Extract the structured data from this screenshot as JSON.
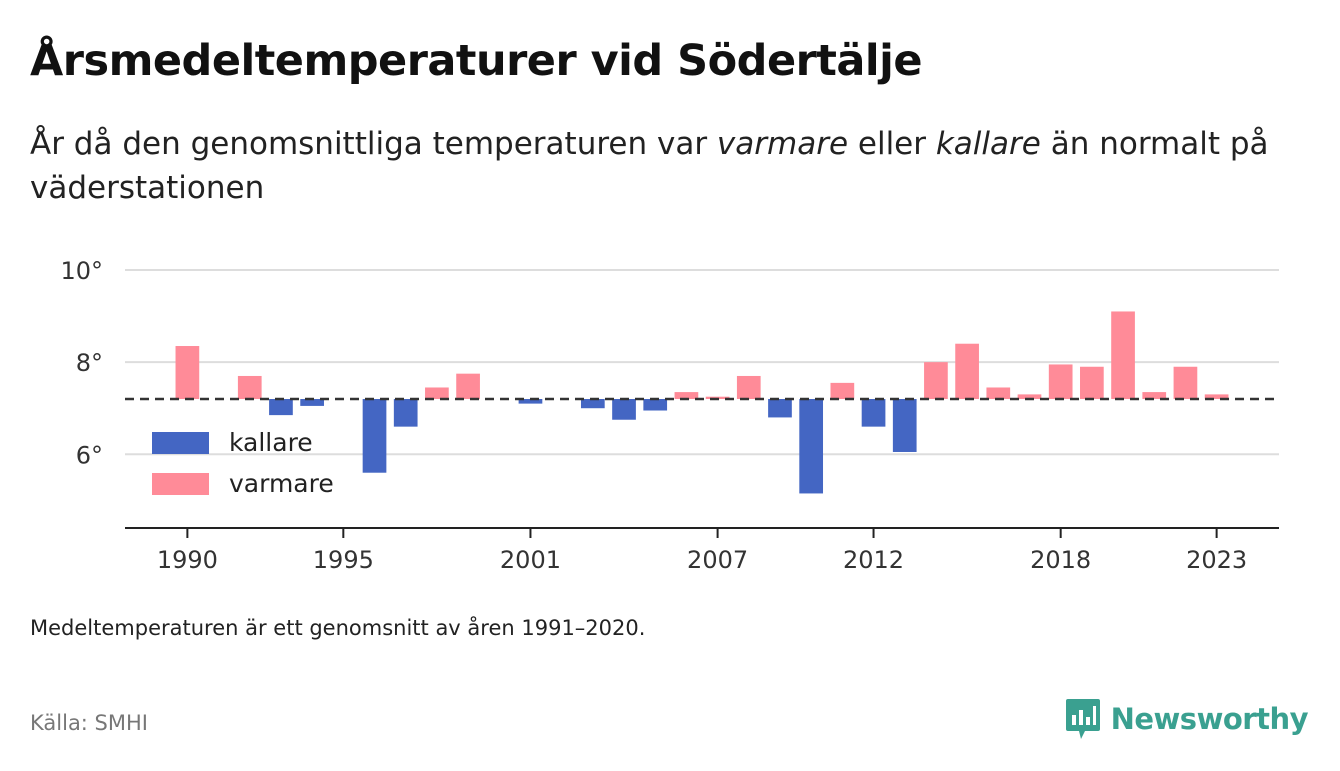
{
  "header": {
    "title": "Årsmedeltemperaturer vid Södertälje",
    "subtitle_pre": "År då den genomsnittliga temperaturen var ",
    "subtitle_em1": "varmare",
    "subtitle_mid": " eller ",
    "subtitle_em2": "kallare",
    "subtitle_post": " än normalt på väderstationen"
  },
  "footer": {
    "note": "Medeltemperaturen är ett genomsnitt av åren 1991–2020.",
    "source": "Källa: SMHI",
    "brand": "Newsworthy",
    "brand_icon": "bar-chart-speech-bubble-icon"
  },
  "colors": {
    "kallare": "#4466c3",
    "varmare": "#ff8b98",
    "grid": "#dddddd",
    "baseline": "#333333",
    "brand": "#3aa090"
  },
  "chart_data": {
    "type": "bar",
    "title": "Årsmedeltemperaturer vid Södertälje",
    "ylim": [
      4.4,
      10.0
    ],
    "yticks": [
      6,
      8,
      10
    ],
    "ytick_labels": [
      "6°",
      "8°",
      "10°"
    ],
    "xticks": [
      1990,
      1995,
      2001,
      2007,
      2012,
      2018,
      2023
    ],
    "xtick_labels": [
      "1990",
      "1995",
      "2001",
      "2007",
      "2012",
      "2018",
      "2023"
    ],
    "grid": true,
    "normal": 7.2,
    "legend": {
      "placement": "left",
      "entries": [
        {
          "key": "kallare",
          "label": "kallare"
        },
        {
          "key": "varmare",
          "label": "varmare"
        }
      ]
    },
    "years": [
      1990,
      1991,
      1992,
      1993,
      1994,
      1995,
      1996,
      1997,
      1998,
      1999,
      2000,
      2001,
      2002,
      2003,
      2004,
      2005,
      2006,
      2007,
      2008,
      2009,
      2010,
      2011,
      2012,
      2013,
      2014,
      2015,
      2016,
      2017,
      2018,
      2019,
      2020,
      2021,
      2022,
      2023
    ],
    "values": [
      8.35,
      null,
      7.7,
      6.85,
      7.05,
      null,
      5.6,
      6.6,
      7.45,
      7.75,
      null,
      7.1,
      null,
      7.0,
      6.75,
      6.95,
      7.35,
      7.25,
      7.7,
      6.8,
      5.15,
      7.55,
      6.6,
      6.05,
      8.0,
      8.4,
      7.45,
      7.3,
      7.95,
      7.9,
      9.1,
      7.35,
      7.9,
      7.3
    ]
  }
}
